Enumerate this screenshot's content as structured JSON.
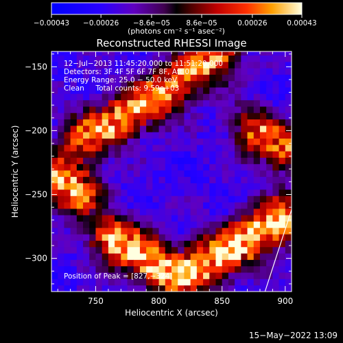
{
  "chart_data": {
    "type": "heatmap",
    "title": "Reconstructed RHESSI Image",
    "xlabel": "Heliocentric X (arcsec)",
    "ylabel": "Heliocentric Y (arcsec)",
    "xlim": [
      715,
      905
    ],
    "ylim": [
      -326,
      -138
    ],
    "x_ticks": [
      750,
      800,
      850,
      900
    ],
    "y_ticks": [
      -150,
      -200,
      -250,
      -300
    ],
    "x_tick_labels": [
      "750",
      "800",
      "850",
      "900"
    ],
    "y_tick_labels": [
      "−150",
      "−200",
      "−250",
      "−300"
    ],
    "colorbar": {
      "range": [
        -0.00043,
        0.00043
      ],
      "ticks": [
        -0.00043,
        -0.00026,
        -8.6e-05,
        8.6e-05,
        0.00026,
        0.00043
      ],
      "tick_labels": [
        "−0.00043",
        "−0.00026",
        "−8.6e−05",
        "8.6e−05",
        "0.00026",
        "0.00043"
      ],
      "unit_label": "(photons cm⁻² s⁻¹ asec⁻²)"
    },
    "annotations": [
      "12−Jul−2013 11:45:20.000 to 11:51:20.000",
      "Detectors: 3F 4F 5F 6F 7F 8F, Att 0",
      "Energy Range: 25.0 − 50.0 keV",
      "Clean     Total counts: 9.59e+03"
    ],
    "peak_label": "Position of Peak = [827,−324]",
    "peak": [
      827,
      -324
    ],
    "limb": {
      "x1": [
        884,
        -326
      ],
      "x2": [
        905,
        -262
      ]
    },
    "intensity_bands": [
      {
        "name": "upper",
        "points": [
          [
            742,
            -205
          ],
          [
            770,
            -190
          ],
          [
            800,
            -172
          ],
          [
            825,
            -155
          ],
          [
            845,
            -140
          ]
        ],
        "peak": 0.00034
      },
      {
        "name": "left",
        "points": [
          [
            718,
            -238
          ],
          [
            735,
            -248
          ]
        ],
        "peak": 0.0004
      },
      {
        "name": "right",
        "points": [
          [
            875,
            -200
          ],
          [
            900,
            -215
          ]
        ],
        "peak": 0.00028
      },
      {
        "name": "lower",
        "points": [
          [
            765,
            -285
          ],
          [
            790,
            -300
          ],
          [
            815,
            -315
          ],
          [
            845,
            -300
          ],
          [
            870,
            -285
          ],
          [
            895,
            -270
          ]
        ],
        "peak": 0.00043
      }
    ]
  },
  "footer": {
    "timestamp": "15−May−2022 13:09"
  }
}
